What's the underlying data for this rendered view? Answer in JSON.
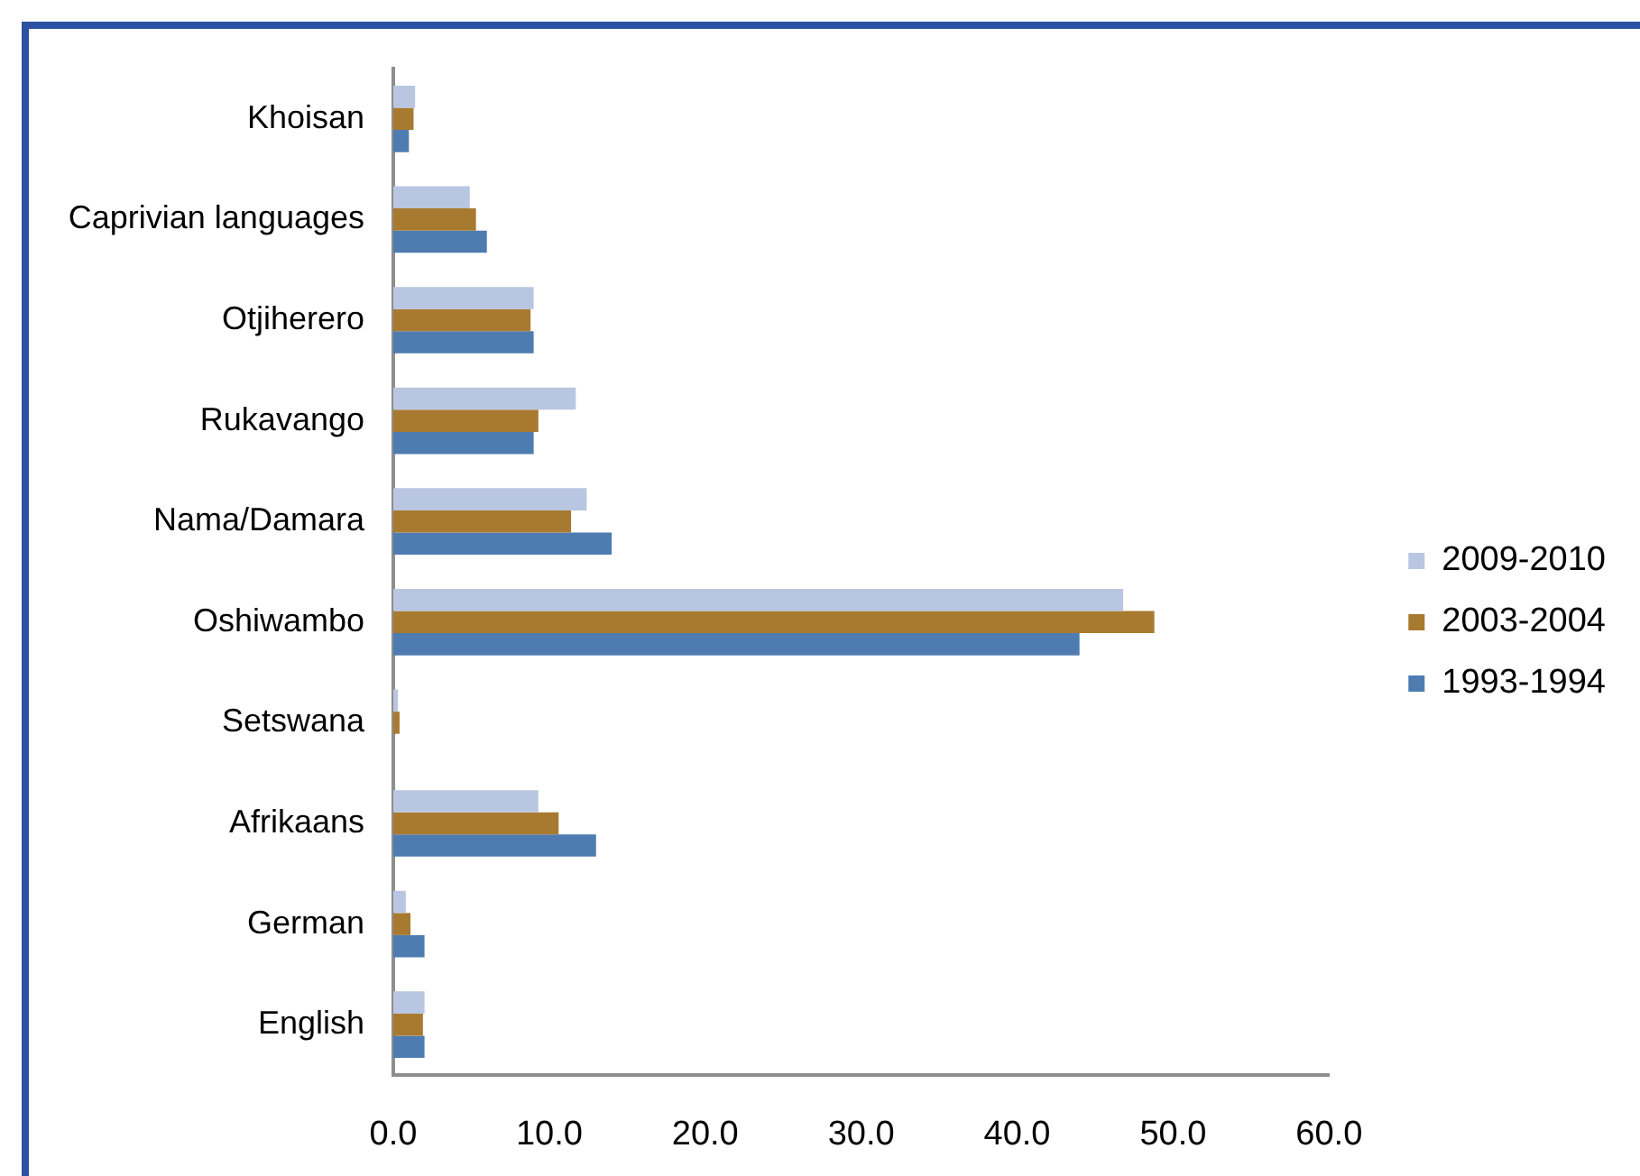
{
  "chart_data": {
    "type": "bar",
    "orientation": "horizontal",
    "categories": [
      "Khoisan",
      "Caprivian languages",
      "Otjiherero",
      "Rukavango",
      "Nama/Damara",
      "Oshiwambo",
      "Setswana",
      "Afrikaans",
      "German",
      "English"
    ],
    "series": [
      {
        "name": "2009-2010",
        "color": "#b8c6e1",
        "values": [
          1.4,
          4.9,
          9.0,
          11.7,
          12.4,
          46.8,
          0.3,
          9.3,
          0.8,
          2.0
        ]
      },
      {
        "name": "2003-2004",
        "color": "#a87a30",
        "values": [
          1.3,
          5.3,
          8.8,
          9.3,
          11.4,
          48.8,
          0.4,
          10.6,
          1.1,
          1.9
        ]
      },
      {
        "name": "1993-1994",
        "color": "#4e7cb0",
        "values": [
          1.0,
          6.0,
          9.0,
          9.0,
          14.0,
          44.0,
          null,
          13.0,
          2.0,
          2.0
        ]
      }
    ],
    "xlim": [
      0,
      60
    ],
    "xticks": [
      {
        "value": 0,
        "label": "0.0"
      },
      {
        "value": 10,
        "label": "10.0"
      },
      {
        "value": 20,
        "label": "20.0"
      },
      {
        "value": 30,
        "label": "30.0"
      },
      {
        "value": 40,
        "label": "40.0"
      },
      {
        "value": 50,
        "label": "50.0"
      },
      {
        "value": 60,
        "label": "60.0"
      }
    ],
    "grid": false,
    "legend": "right"
  }
}
